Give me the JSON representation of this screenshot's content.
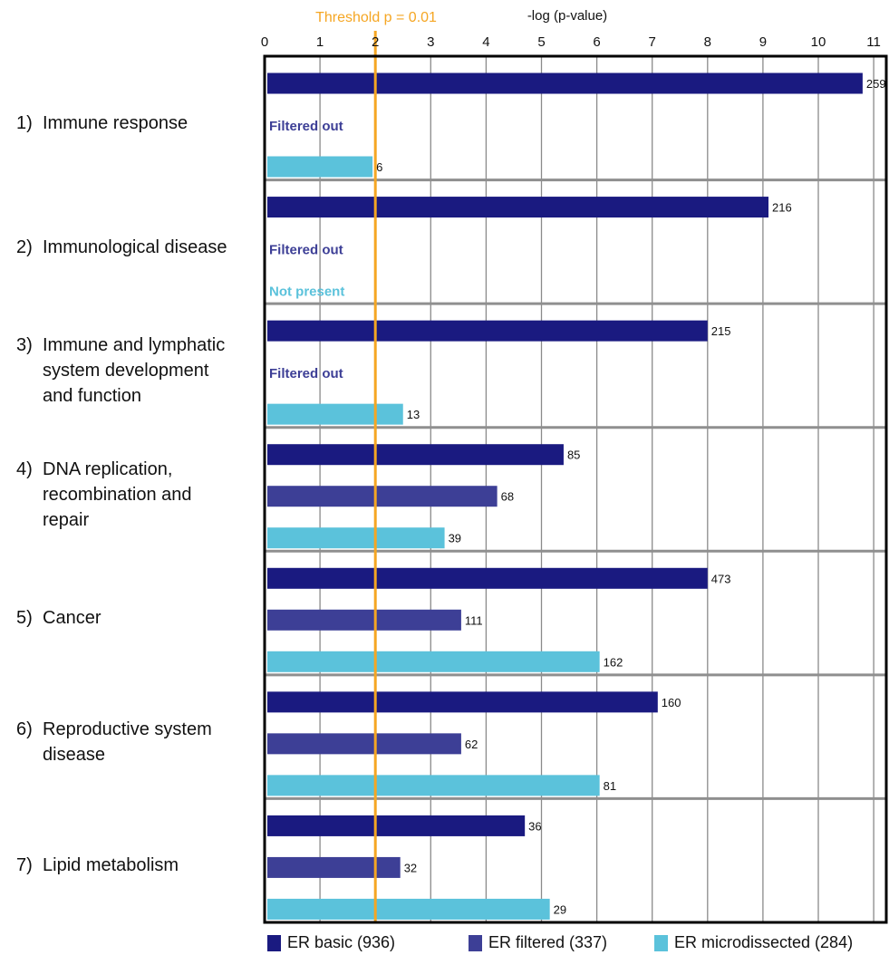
{
  "chart_data": {
    "type": "bar",
    "orientation": "horizontal",
    "xlabel": "-log (p-value)",
    "xlim": [
      0,
      11
    ],
    "xticks": [
      0,
      1,
      2,
      3,
      4,
      5,
      6,
      7,
      8,
      9,
      10,
      11
    ],
    "grid": true,
    "threshold": {
      "label": "Threshold p = 0.01",
      "value": 2,
      "color": "#f5a623"
    },
    "categories": [
      {
        "num": "1)",
        "name": "Immune response",
        "lines": [
          "Immune response"
        ]
      },
      {
        "num": "2)",
        "name": "Immunological disease",
        "lines": [
          "Immunological disease"
        ]
      },
      {
        "num": "3)",
        "name": "Immune and lymphatic system development and function",
        "lines": [
          "Immune and lymphatic",
          "system development",
          "and function"
        ]
      },
      {
        "num": "4)",
        "name": "DNA replication, recombination and repair",
        "lines": [
          "DNA replication,",
          "recombination and",
          "repair"
        ]
      },
      {
        "num": "5)",
        "name": "Cancer",
        "lines": [
          "Cancer"
        ]
      },
      {
        "num": "6)",
        "name": "Reproductive system disease",
        "lines": [
          "Reproductive system",
          "disease"
        ]
      },
      {
        "num": "7)",
        "name": "Lipid metabolism",
        "lines": [
          "Lipid metabolism"
        ]
      }
    ],
    "series": [
      {
        "name": "ER basic (936)",
        "color": "#1a1a80",
        "values": [
          10.8,
          9.1,
          8.0,
          5.4,
          8.0,
          7.1,
          4.7
        ],
        "labels": [
          "259",
          "216",
          "215",
          "85",
          "473",
          "160",
          "36"
        ],
        "notes": [
          null,
          null,
          null,
          null,
          null,
          null,
          null
        ]
      },
      {
        "name": "ER filtered (337)",
        "color": "#3d3f96",
        "values": [
          null,
          null,
          null,
          4.2,
          3.55,
          3.55,
          2.45
        ],
        "labels": [
          null,
          null,
          null,
          "68",
          "111",
          "62",
          "32"
        ],
        "notes": [
          "Filtered out",
          "Filtered out",
          "Filtered out",
          null,
          null,
          null,
          null
        ]
      },
      {
        "name": "ER microdissected (284)",
        "color": "#5bc2db",
        "values": [
          1.95,
          null,
          2.5,
          3.25,
          6.05,
          6.05,
          5.15
        ],
        "labels": [
          "6",
          null,
          "13",
          "39",
          "162",
          "81",
          "29"
        ],
        "notes": [
          null,
          "Not present",
          null,
          null,
          null,
          null,
          null
        ]
      }
    ],
    "legend_position": "bottom"
  }
}
